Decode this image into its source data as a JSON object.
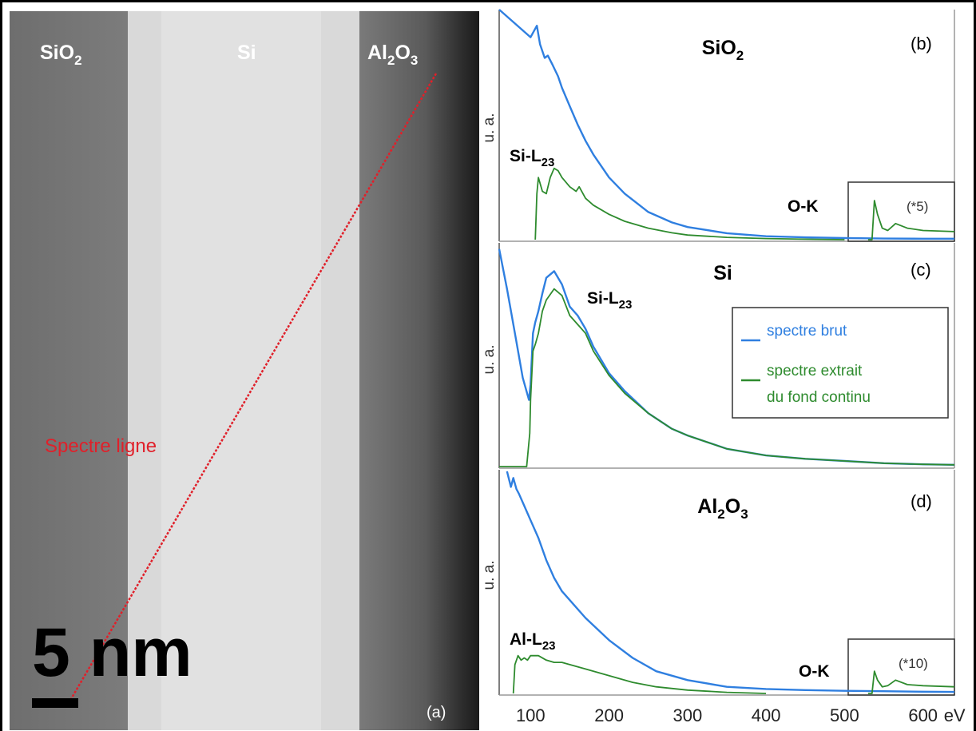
{
  "panel_a": {
    "regions": {
      "left": {
        "base": "SiO",
        "sub": "2"
      },
      "middle": {
        "base": "Si"
      },
      "right": {
        "parts": [
          {
            "base": "Al",
            "sub": "2"
          },
          {
            "base": "O",
            "sub": "3"
          }
        ]
      }
    },
    "line_label": "Spectre ligne",
    "scalebar_label": "5 nm",
    "panel_label": "(a)"
  },
  "colors": {
    "raw_spectrum": "#2f7fe0",
    "extracted_spectrum": "#2e8b2e",
    "line_scan": "#e0202a"
  },
  "x_axis": {
    "tick_labels": [
      "100",
      "200",
      "300",
      "400",
      "500",
      "600"
    ],
    "unit": "eV"
  },
  "legend": {
    "raw": "spectre brut",
    "extracted_line1": "spectre extrait",
    "extracted_line2": "du fond continu"
  },
  "ylabel": "u. a.",
  "chart_data": [
    {
      "type": "line",
      "panel": "(b)",
      "title_parts": [
        {
          "base": "SiO",
          "sub": "2"
        }
      ],
      "ylabel": "u. a.",
      "xlim": [
        60,
        640
      ],
      "annotations": [
        {
          "parts": [
            {
              "base": "Si-L",
              "sub": "23"
            }
          ]
        },
        {
          "text": "O-K"
        },
        {
          "text": "(*5)"
        }
      ],
      "series": [
        {
          "role": "raw",
          "x": [
            60,
            100,
            108,
            112,
            118,
            122,
            128,
            135,
            140,
            150,
            160,
            170,
            180,
            200,
            220,
            250,
            280,
            300,
            350,
            400,
            450,
            500,
            530,
            550,
            600,
            640
          ],
          "y": [
            1.05,
            0.88,
            0.93,
            0.85,
            0.79,
            0.8,
            0.76,
            0.71,
            0.66,
            0.58,
            0.5,
            0.43,
            0.37,
            0.27,
            0.2,
            0.12,
            0.075,
            0.055,
            0.028,
            0.015,
            0.01,
            0.007,
            0.006,
            0.005,
            0.004,
            0.004
          ]
        },
        {
          "role": "extracted",
          "x": [
            106,
            108,
            110,
            115,
            120,
            125,
            130,
            135,
            140,
            150,
            158,
            162,
            170,
            180,
            200,
            220,
            250,
            280,
            300,
            350,
            400,
            450,
            500
          ],
          "y": [
            0.0,
            0.2,
            0.27,
            0.21,
            0.2,
            0.27,
            0.31,
            0.3,
            0.27,
            0.23,
            0.21,
            0.23,
            0.18,
            0.15,
            0.11,
            0.08,
            0.05,
            0.03,
            0.02,
            0.01,
            0.005,
            0.002,
            0.0
          ]
        },
        {
          "role": "extracted-inset",
          "x": [
            530,
            535,
            538,
            542,
            548,
            555,
            565,
            580,
            600,
            640
          ],
          "y": [
            0.0,
            0.0,
            0.17,
            0.11,
            0.05,
            0.04,
            0.07,
            0.05,
            0.04,
            0.035
          ]
        }
      ]
    },
    {
      "type": "line",
      "panel": "(c)",
      "title_parts": [
        {
          "base": "Si"
        }
      ],
      "ylabel": "u. a.",
      "xlim": [
        60,
        640
      ],
      "annotations": [
        {
          "parts": [
            {
              "base": "Si-L",
              "sub": "23"
            }
          ]
        }
      ],
      "series": [
        {
          "role": "raw",
          "x": [
            60,
            70,
            80,
            90,
            98,
            100,
            103,
            106,
            110,
            115,
            120,
            130,
            140,
            150,
            160,
            170,
            180,
            200,
            220,
            250,
            280,
            300,
            350,
            400,
            450,
            500,
            550,
            600,
            640
          ],
          "y": [
            0.98,
            0.8,
            0.6,
            0.4,
            0.3,
            0.37,
            0.6,
            0.65,
            0.7,
            0.78,
            0.85,
            0.88,
            0.82,
            0.72,
            0.68,
            0.62,
            0.54,
            0.42,
            0.34,
            0.24,
            0.17,
            0.14,
            0.08,
            0.05,
            0.035,
            0.025,
            0.015,
            0.01,
            0.008
          ]
        },
        {
          "role": "extracted",
          "x": [
            60,
            95,
            99,
            100,
            103,
            106,
            110,
            115,
            120,
            130,
            140,
            150,
            160,
            170,
            180,
            200,
            220,
            250,
            280,
            300,
            350,
            400,
            450,
            500,
            550,
            600,
            640
          ],
          "y": [
            0.0,
            0.0,
            0.15,
            0.3,
            0.52,
            0.55,
            0.6,
            0.7,
            0.75,
            0.8,
            0.77,
            0.68,
            0.64,
            0.6,
            0.52,
            0.41,
            0.33,
            0.24,
            0.17,
            0.14,
            0.08,
            0.05,
            0.035,
            0.025,
            0.015,
            0.01,
            0.008
          ]
        }
      ]
    },
    {
      "type": "line",
      "panel": "(d)",
      "title_parts": [
        {
          "base": "Al",
          "sub": "2"
        },
        {
          "base": "O",
          "sub": "3"
        }
      ],
      "ylabel": "u. a.",
      "xlim": [
        60,
        640
      ],
      "annotations": [
        {
          "parts": [
            {
              "base": "Al-L",
              "sub": "23"
            }
          ]
        },
        {
          "text": "O-K"
        },
        {
          "text": "(*10)"
        }
      ],
      "series": [
        {
          "role": "raw",
          "x": [
            70,
            75,
            78,
            82,
            85,
            90,
            95,
            100,
            110,
            120,
            130,
            140,
            150,
            170,
            200,
            230,
            260,
            300,
            350,
            400,
            450,
            500,
            550,
            600,
            640
          ],
          "y": [
            1.05,
            0.93,
            0.97,
            0.92,
            0.9,
            0.86,
            0.82,
            0.78,
            0.7,
            0.6,
            0.52,
            0.46,
            0.42,
            0.34,
            0.24,
            0.16,
            0.1,
            0.06,
            0.03,
            0.02,
            0.015,
            0.012,
            0.01,
            0.008,
            0.007
          ]
        },
        {
          "role": "extracted",
          "x": [
            78,
            80,
            84,
            88,
            92,
            96,
            100,
            110,
            120,
            130,
            140,
            150,
            170,
            200,
            230,
            260,
            300,
            350,
            400
          ],
          "y": [
            0.0,
            0.13,
            0.17,
            0.15,
            0.16,
            0.15,
            0.17,
            0.17,
            0.15,
            0.14,
            0.14,
            0.13,
            0.11,
            0.08,
            0.05,
            0.03,
            0.015,
            0.005,
            0.0
          ]
        },
        {
          "role": "extracted-inset",
          "x": [
            530,
            535,
            538,
            542,
            548,
            555,
            565,
            580,
            600,
            640
          ],
          "y": [
            0.0,
            0.0,
            0.1,
            0.06,
            0.03,
            0.035,
            0.06,
            0.04,
            0.035,
            0.03
          ]
        }
      ]
    }
  ]
}
